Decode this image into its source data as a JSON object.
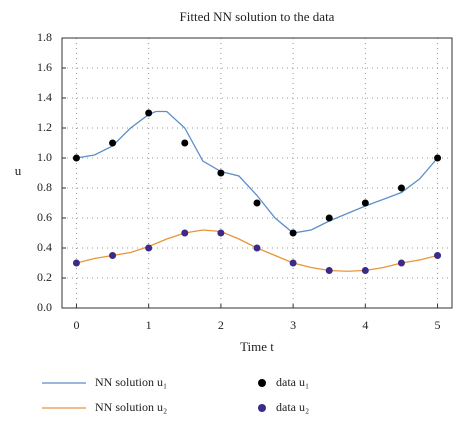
{
  "chart_data": {
    "type": "line",
    "title": "Fitted NN solution to the data",
    "x_label": "Time t",
    "y_label": "u",
    "xlim": [
      -0.2,
      5.2
    ],
    "ylim": [
      0,
      1.8
    ],
    "xticks": [
      0,
      1,
      2,
      3,
      4,
      5
    ],
    "yticks": [
      {
        "value": 0,
        "label": "0.0"
      },
      0.2,
      0.4,
      0.6,
      0.8,
      {
        "value": 1,
        "label": "1.0"
      },
      1.2,
      1.4,
      1.6,
      1.8
    ],
    "grid": true,
    "legend": "bottom",
    "series": [
      {
        "name": "NN solution u₁",
        "color": "#5b8fc9",
        "mode": "line",
        "x": [
          0,
          0.25,
          0.5,
          0.75,
          1.0,
          1.1,
          1.25,
          1.5,
          1.75,
          2.0,
          2.25,
          2.5,
          2.75,
          3.0,
          3.25,
          3.5,
          3.75,
          4.0,
          4.5,
          4.75,
          5.0
        ],
        "values": [
          1.0,
          1.02,
          1.08,
          1.2,
          1.29,
          1.31,
          1.31,
          1.2,
          0.98,
          0.91,
          0.88,
          0.75,
          0.6,
          0.5,
          0.52,
          0.58,
          0.63,
          0.68,
          0.77,
          0.86,
          1.0
        ]
      },
      {
        "name": "NN solution u₂",
        "color": "#e8953a",
        "mode": "line",
        "x": [
          0,
          0.25,
          0.5,
          0.75,
          1.0,
          1.25,
          1.5,
          1.75,
          2.0,
          2.25,
          2.5,
          2.75,
          3.0,
          3.25,
          3.5,
          3.75,
          4.0,
          4.25,
          4.5,
          4.75,
          5.0
        ],
        "values": [
          0.3,
          0.33,
          0.35,
          0.37,
          0.41,
          0.46,
          0.5,
          0.52,
          0.51,
          0.46,
          0.4,
          0.35,
          0.3,
          0.27,
          0.25,
          0.245,
          0.25,
          0.27,
          0.3,
          0.32,
          0.35
        ]
      },
      {
        "name": "data u₁",
        "color": "#000000",
        "mode": "markers",
        "x": [
          0,
          0.5,
          1,
          1.5,
          2,
          2.5,
          3,
          3.5,
          4,
          4.5,
          5
        ],
        "values": [
          1.0,
          1.1,
          1.3,
          1.1,
          0.9,
          0.7,
          0.5,
          0.6,
          0.7,
          0.8,
          1.0
        ]
      },
      {
        "name": "data u₂",
        "color": "#3b2a8a",
        "mode": "markers",
        "x": [
          0,
          0.5,
          1,
          1.5,
          2,
          2.5,
          3,
          3.5,
          4,
          4.5,
          5
        ],
        "values": [
          0.3,
          0.35,
          0.4,
          0.5,
          0.5,
          0.4,
          0.3,
          0.25,
          0.25,
          0.3,
          0.35
        ]
      }
    ]
  }
}
